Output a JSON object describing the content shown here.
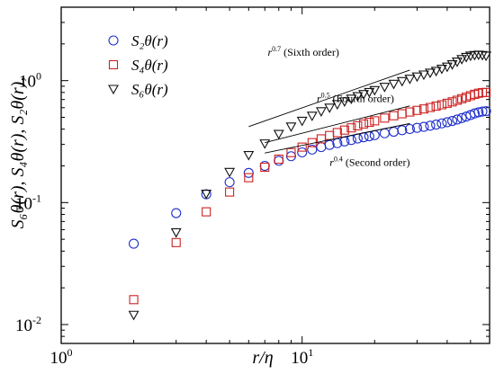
{
  "chart_data": {
    "type": "scatter",
    "xscale": "log",
    "yscale": "log",
    "xlim": [
      1,
      60
    ],
    "ylim": [
      0.007,
      4
    ],
    "xlabel": "r/η",
    "ylabel": "S₆θ(r), S₄θ(r), S₂θ(r),",
    "x_ticks": [
      {
        "v": 1,
        "label": "10",
        "exp": "0"
      },
      {
        "v": 10,
        "label": "10",
        "exp": "1"
      }
    ],
    "y_ticks": [
      {
        "v": 0.01,
        "label": "10",
        "exp": "-2"
      },
      {
        "v": 0.1,
        "label": "10",
        "exp": "-1"
      },
      {
        "v": 1,
        "label": "10",
        "exp": "0"
      }
    ],
    "legend_position": "top-left",
    "series": [
      {
        "name": "S₂θ(r)",
        "marker": "circle",
        "color": "#1f2fcc",
        "x": [
          2,
          3,
          4,
          5,
          6,
          7,
          8,
          9,
          10,
          11,
          12,
          13,
          14,
          15,
          16,
          17,
          18,
          19,
          20,
          22,
          24,
          26,
          28,
          30,
          32,
          34,
          36,
          38,
          40,
          42,
          44,
          46,
          48,
          50,
          52,
          54,
          56,
          58
        ],
        "y": [
          0.046,
          0.082,
          0.117,
          0.147,
          0.175,
          0.2,
          0.22,
          0.24,
          0.258,
          0.272,
          0.285,
          0.297,
          0.307,
          0.317,
          0.326,
          0.335,
          0.343,
          0.35,
          0.357,
          0.37,
          0.381,
          0.392,
          0.401,
          0.41,
          0.418,
          0.427,
          0.436,
          0.446,
          0.456,
          0.467,
          0.48,
          0.493,
          0.507,
          0.522,
          0.538,
          0.55,
          0.558,
          0.562
        ]
      },
      {
        "name": "S₄θ(r)",
        "marker": "square",
        "color": "#cc2222",
        "x": [
          2,
          3,
          4,
          5,
          6,
          7,
          8,
          9,
          10,
          11,
          12,
          13,
          14,
          15,
          16,
          17,
          18,
          19,
          20,
          22,
          24,
          26,
          28,
          30,
          32,
          34,
          36,
          38,
          40,
          42,
          44,
          46,
          48,
          50,
          52,
          54,
          56,
          58
        ],
        "y": [
          0.016,
          0.047,
          0.084,
          0.122,
          0.16,
          0.195,
          0.227,
          0.257,
          0.285,
          0.31,
          0.333,
          0.355,
          0.375,
          0.393,
          0.41,
          0.426,
          0.441,
          0.455,
          0.468,
          0.493,
          0.515,
          0.535,
          0.553,
          0.57,
          0.586,
          0.602,
          0.618,
          0.634,
          0.652,
          0.67,
          0.69,
          0.71,
          0.731,
          0.752,
          0.772,
          0.788,
          0.798,
          0.8
        ]
      },
      {
        "name": "S₆θ(r)",
        "marker": "triangle-down",
        "color": "#111111",
        "x": [
          2,
          3,
          4,
          5,
          6,
          7,
          8,
          9,
          10,
          11,
          12,
          13,
          14,
          15,
          16,
          17,
          18,
          19,
          20,
          22,
          24,
          26,
          28,
          30,
          32,
          34,
          36,
          38,
          40,
          42,
          44,
          46,
          48,
          50,
          52,
          54,
          56,
          58
        ],
        "y": [
          0.012,
          0.057,
          0.118,
          0.178,
          0.245,
          0.305,
          0.365,
          0.42,
          0.468,
          0.515,
          0.56,
          0.6,
          0.64,
          0.675,
          0.71,
          0.745,
          0.775,
          0.805,
          0.835,
          0.888,
          0.94,
          0.99,
          1.035,
          1.08,
          1.12,
          1.16,
          1.2,
          1.25,
          1.3,
          1.36,
          1.43,
          1.5,
          1.56,
          1.6,
          1.62,
          1.63,
          1.62,
          1.6
        ]
      }
    ],
    "reference_lines": [
      {
        "base": "r",
        "exp": "0.7",
        "text": "(Sixth order)",
        "x": [
          6,
          28
        ],
        "y": [
          0.42,
          1.22
        ],
        "label_x": 7.2,
        "label_y": 1.6
      },
      {
        "base": "r",
        "exp": "0.5",
        "text": "(Fourth order)",
        "x": [
          7,
          28
        ],
        "y": [
          0.31,
          0.62
        ],
        "label_x": 11.5,
        "label_y": 0.67
      },
      {
        "base": "r",
        "exp": "0.4",
        "text": "(Second order)",
        "x": [
          7,
          28
        ],
        "y": [
          0.255,
          0.445
        ],
        "label_x": 13,
        "label_y": 0.2
      }
    ]
  }
}
